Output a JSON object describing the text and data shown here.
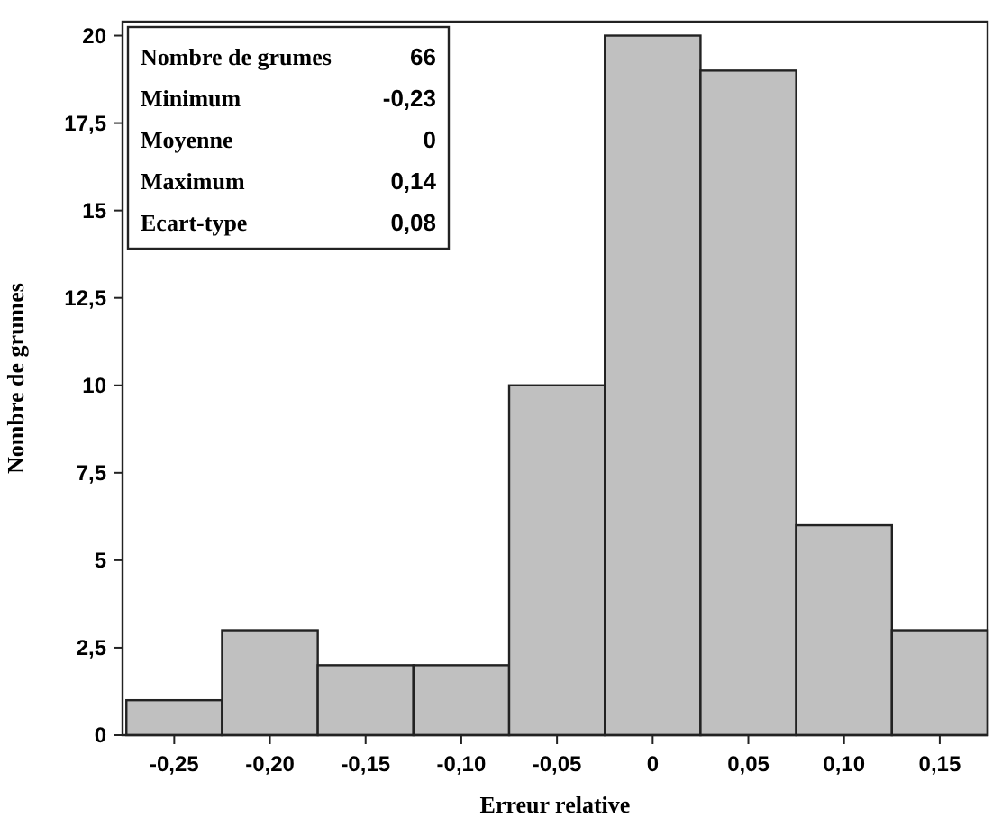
{
  "chart_data": {
    "type": "histogram",
    "xlabel": "Erreur relative",
    "ylabel": "Nombre de grumes",
    "bins": [
      -0.275,
      -0.225,
      -0.175,
      -0.125,
      -0.075,
      -0.025,
      0.025,
      0.075,
      0.125,
      0.175
    ],
    "values": [
      1,
      3,
      2,
      2,
      10,
      20,
      19,
      6,
      3
    ],
    "color": "#c0c0c0",
    "xlim": [
      -0.277,
      0.175
    ],
    "xticks": [
      {
        "value": -0.25,
        "label": "-0,25"
      },
      {
        "value": -0.2,
        "label": "-0,20"
      },
      {
        "value": -0.15,
        "label": "-0,15"
      },
      {
        "value": -0.1,
        "label": "-0,10"
      },
      {
        "value": -0.05,
        "label": "-0,05"
      },
      {
        "value": 0,
        "label": "0"
      },
      {
        "value": 0.05,
        "label": "0,05"
      },
      {
        "value": 0.1,
        "label": "0,10"
      },
      {
        "value": 0.15,
        "label": "0,15"
      }
    ],
    "ylim": [
      0,
      20.4
    ],
    "yticks": [
      0,
      {
        "value": 2.5,
        "label": "2,5"
      },
      5,
      {
        "value": 7.5,
        "label": "7,5"
      },
      10,
      {
        "value": 12.5,
        "label": "12,5"
      },
      15,
      {
        "value": 17.5,
        "label": "17,5"
      },
      20
    ],
    "annotations": [
      "Nombre de grumes",
      "66",
      "Minimum",
      "-0,23",
      "Moyenne",
      "0",
      "Maximum",
      "0,14",
      "Ecart-type",
      "0,08"
    ]
  }
}
